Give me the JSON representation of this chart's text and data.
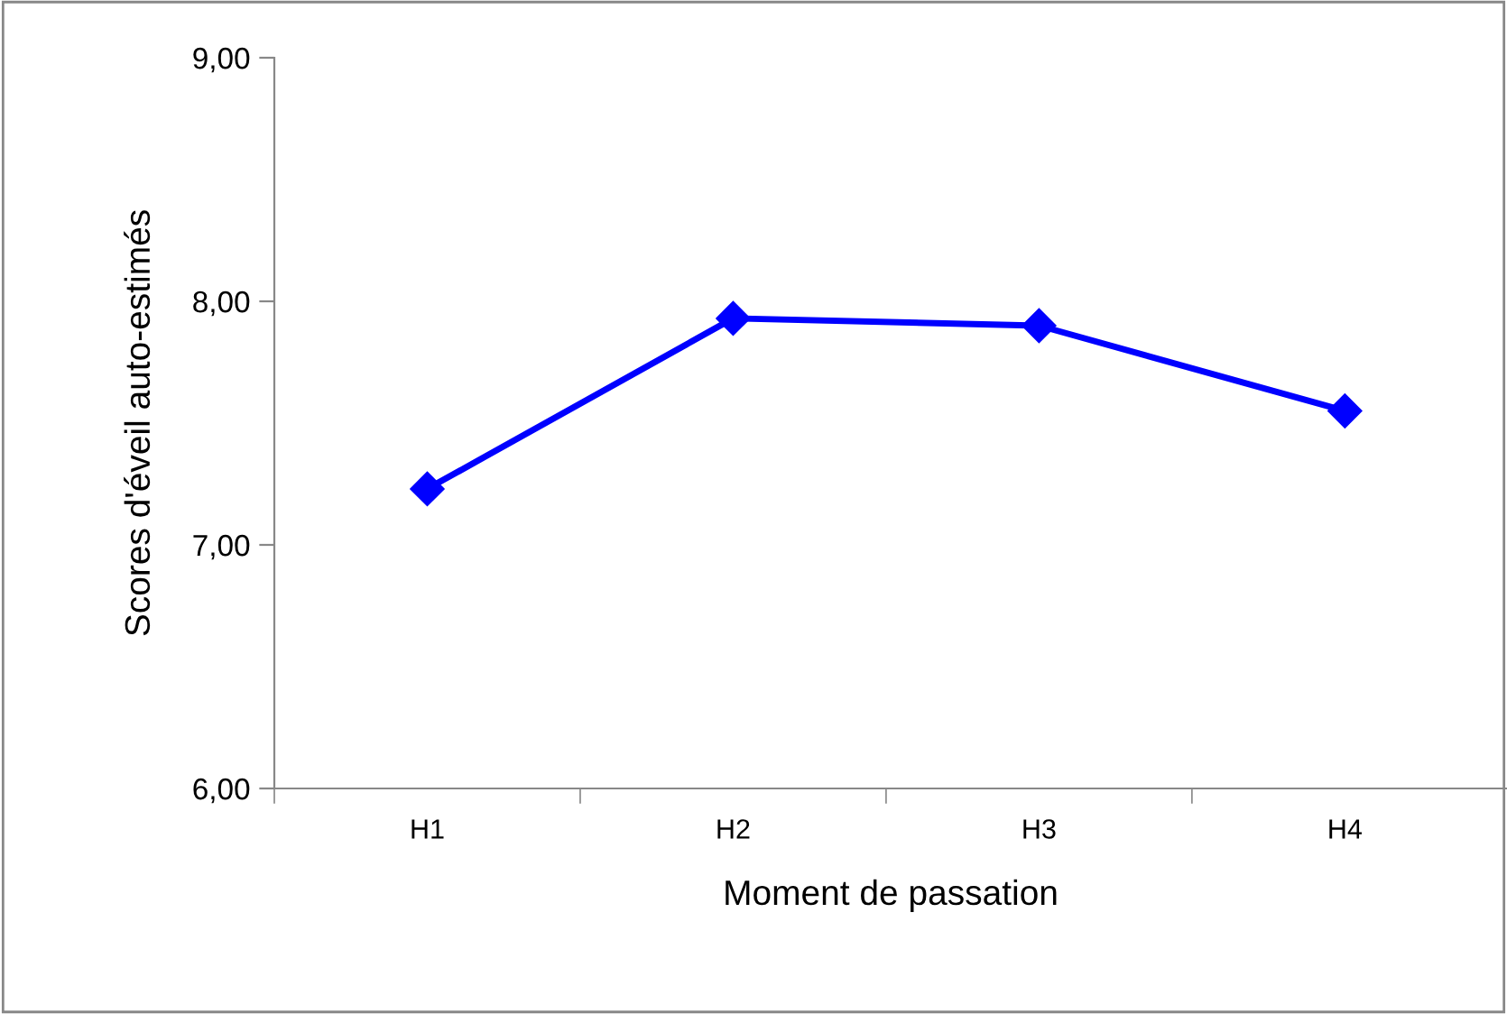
{
  "chart_data": {
    "type": "line",
    "xlabel": "Moment de passation",
    "ylabel": "Scores d'éveil auto-estimés",
    "categories": [
      "H1",
      "H2",
      "H3",
      "H4"
    ],
    "series": [
      {
        "color": "#0000ff",
        "values": [
          7.23,
          7.93,
          7.9,
          7.55
        ]
      }
    ],
    "ylim": [
      6,
      9
    ],
    "yticks": [
      {
        "value": 6,
        "label": "6,00"
      },
      {
        "value": 7,
        "label": "7,00"
      },
      {
        "value": 8,
        "label": "8,00"
      },
      {
        "value": 9,
        "label": "9,00"
      }
    ],
    "marker": "diamond",
    "line_style": "solid",
    "grid": false,
    "legend": false
  }
}
